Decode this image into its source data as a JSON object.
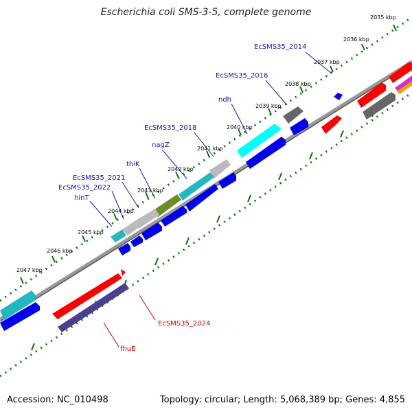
{
  "title": "Escherichia coli SMS-3-5, complete genome",
  "footer": {
    "accession": "Accession: NC_010498",
    "summary": "Topology: circular; Length: 5,068,389 bp; Genes: 4,855"
  },
  "colors": {
    "forward_label": "#1515b0",
    "reverse_label": "#c00000",
    "tick": "#007700",
    "backbone": "#888888"
  },
  "ticks": [
    {
      "label": "2035 kbp"
    },
    {
      "label": "2036 kbp"
    },
    {
      "label": "2037 kbp"
    },
    {
      "label": "2038 kbp"
    },
    {
      "label": "2039 kbp"
    },
    {
      "label": "2040 kbp"
    },
    {
      "label": "2041 kbp"
    },
    {
      "label": "2042 kbp"
    },
    {
      "label": "2043 kbp"
    },
    {
      "label": "2044 kbp"
    },
    {
      "label": "2045 kbp"
    },
    {
      "label": "2046 kbp"
    },
    {
      "label": "2047 kbp"
    }
  ],
  "gene_labels": [
    {
      "text": "EcSMS35_2014",
      "color": "#1515b0"
    },
    {
      "text": "EcSMS35_2016",
      "color": "#1515b0"
    },
    {
      "text": "ndh",
      "color": "#1515b0"
    },
    {
      "text": "EcSMS35_2018",
      "color": "#1515b0"
    },
    {
      "text": "nagZ",
      "color": "#1515b0"
    },
    {
      "text": "thiK",
      "color": "#1515b0"
    },
    {
      "text": "EcSMS35_2021",
      "color": "#1515b0"
    },
    {
      "text": "EcSMS35_2022",
      "color": "#1515b0"
    },
    {
      "text": "hinT",
      "color": "#1515b0"
    },
    {
      "text": "EcSMS35_2024",
      "color": "#c00000"
    },
    {
      "text": "fhuE",
      "color": "#c00000"
    }
  ]
}
